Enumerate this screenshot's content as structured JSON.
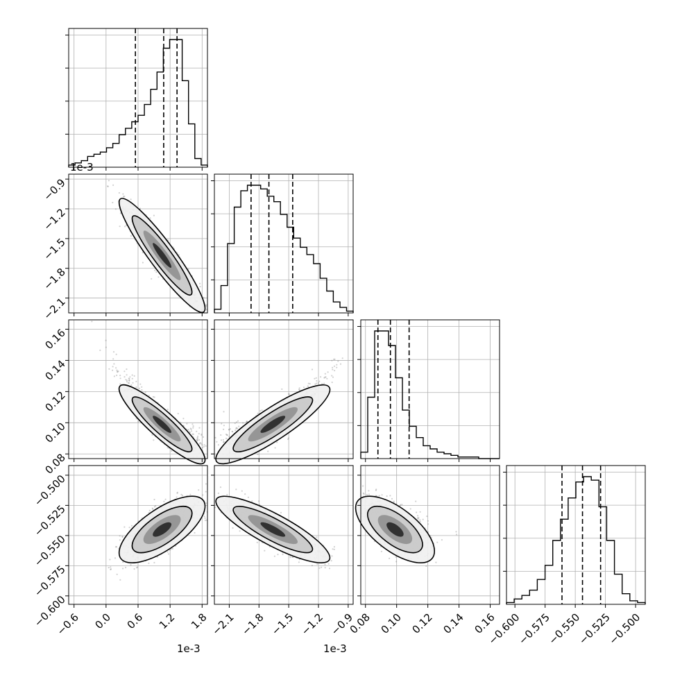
{
  "chart_data": {
    "type": "corner",
    "parameters": [
      {
        "id": "p0",
        "scale_label": "1e-3",
        "range": [
          -0.0007,
          0.0019
        ],
        "ticks": [
          -0.0006,
          0.0,
          0.0006,
          0.0012,
          0.0018
        ],
        "tick_labels": [
          "−0.6",
          "0.0",
          "0.6",
          "1.2",
          "1.8"
        ],
        "quantiles": [
          0.00055,
          0.00108,
          0.00133
        ]
      },
      {
        "id": "p1",
        "scale_label": "1e-3",
        "range": [
          -0.00225,
          -0.00085
        ],
        "ticks": [
          -0.0021,
          -0.0018,
          -0.0015,
          -0.0012,
          -0.0009
        ],
        "tick_labels": [
          "−2.1",
          "−1.8",
          "−1.5",
          "−1.2",
          "−0.9"
        ],
        "quantiles": [
          -0.00188,
          -0.0017,
          -0.00146
        ]
      },
      {
        "id": "p2",
        "scale_label": "",
        "range": [
          0.077,
          0.166
        ],
        "ticks": [
          0.08,
          0.1,
          0.12,
          0.14,
          0.16
        ],
        "tick_labels": [
          "0.08",
          "0.10",
          "0.12",
          "0.14",
          "0.16"
        ],
        "quantiles": [
          0.088,
          0.096,
          0.108
        ]
      },
      {
        "id": "p3",
        "scale_label": "",
        "range": [
          -0.607,
          -0.492
        ],
        "ticks": [
          -0.6,
          -0.575,
          -0.55,
          -0.525,
          -0.5
        ],
        "tick_labels": [
          "−0.600",
          "−0.575",
          "−0.550",
          "−0.525",
          "−0.500"
        ],
        "quantiles": [
          -0.561,
          -0.544,
          -0.529
        ]
      }
    ],
    "histograms": [
      {
        "param": "p0",
        "counts": [
          1,
          2,
          3,
          5,
          6,
          7,
          9,
          11,
          15,
          18,
          21,
          24,
          29,
          36,
          44,
          55,
          59,
          59,
          40,
          20,
          4,
          1
        ]
      },
      {
        "param": "p1",
        "counts": [
          2,
          15,
          38,
          58,
          67,
          70,
          70,
          68,
          64,
          61,
          54,
          47,
          41,
          36,
          32,
          27,
          19,
          12,
          6,
          3,
          1
        ]
      },
      {
        "param": "p2",
        "counts": [
          4,
          38,
          79,
          79,
          70,
          50,
          30,
          20,
          13,
          8,
          6,
          4,
          3,
          2,
          1,
          1,
          1,
          0,
          0,
          0
        ]
      },
      {
        "param": "p3",
        "counts": [
          1,
          3,
          5,
          8,
          14,
          22,
          36,
          48,
          60,
          69,
          72,
          70,
          55,
          36,
          17,
          6,
          2,
          1
        ]
      }
    ],
    "grid": true
  }
}
